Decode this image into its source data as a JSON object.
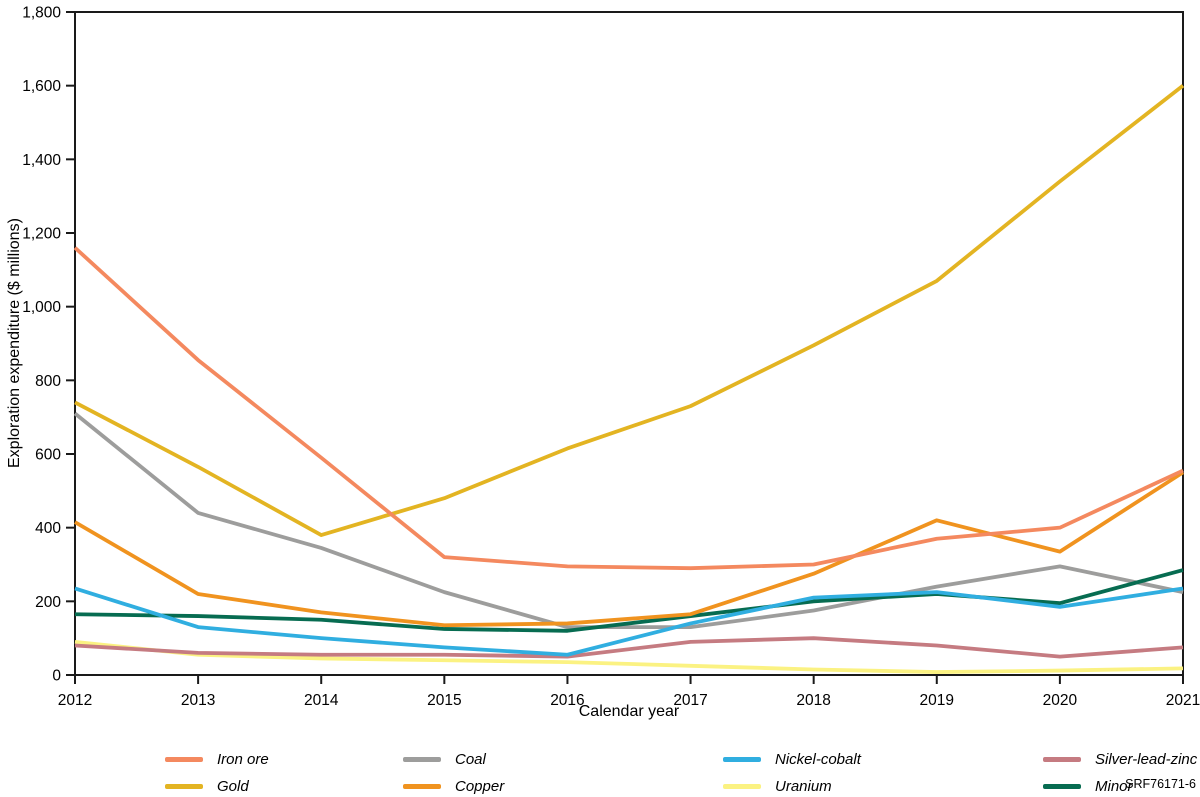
{
  "figure": {
    "reference": "SRF76171-6"
  },
  "chart_data": {
    "type": "line",
    "title": "",
    "xlabel": "Calendar year",
    "ylabel": "Exploration expenditure ($ millions)",
    "x": [
      2012,
      2013,
      2014,
      2015,
      2016,
      2017,
      2018,
      2019,
      2020,
      2021
    ],
    "xtick_labels": [
      "2012",
      "2013",
      "2014",
      "2015",
      "2016",
      "2017",
      "2018",
      "2019",
      "2020",
      "2021"
    ],
    "ylim": [
      0,
      1800
    ],
    "yticks": [
      0,
      200,
      400,
      600,
      800,
      1000,
      1200,
      1400,
      1600,
      1800
    ],
    "ytick_labels": [
      "0",
      "200",
      "400",
      "600",
      "800",
      "1,000",
      "1,200",
      "1,400",
      "1,600",
      "1,800"
    ],
    "grid": false,
    "legend_position": "bottom",
    "axis_color": "#1a1a1a",
    "series": [
      {
        "name": "Uranium",
        "color": "#FBF282",
        "values": [
          90,
          55,
          45,
          40,
          35,
          25,
          15,
          8,
          12,
          18
        ]
      },
      {
        "name": "Silver-lead-zinc",
        "color": "#C57B81",
        "values": [
          80,
          60,
          55,
          55,
          50,
          90,
          100,
          80,
          50,
          75
        ]
      },
      {
        "name": "Coal",
        "color": "#9D9D9C",
        "values": [
          710,
          440,
          345,
          225,
          130,
          130,
          175,
          240,
          295,
          225
        ]
      },
      {
        "name": "Minor",
        "color": "#076C51",
        "values": [
          165,
          160,
          150,
          125,
          120,
          160,
          200,
          220,
          195,
          285
        ]
      },
      {
        "name": "Gold",
        "color": "#E3B422",
        "values": [
          740,
          565,
          380,
          480,
          615,
          730,
          895,
          1070,
          1340,
          1600
        ]
      },
      {
        "name": "Copper",
        "color": "#F0931F",
        "values": [
          415,
          220,
          170,
          135,
          140,
          165,
          275,
          420,
          335,
          550
        ]
      },
      {
        "name": "Nickel-cobalt",
        "color": "#30AEE0",
        "values": [
          235,
          130,
          100,
          75,
          55,
          140,
          210,
          225,
          185,
          235
        ]
      },
      {
        "name": "Iron ore",
        "color": "#F4895F",
        "values": [
          1160,
          855,
          590,
          320,
          295,
          290,
          300,
          370,
          400,
          555
        ]
      }
    ]
  },
  "legend": {
    "items": [
      {
        "label": "Iron ore",
        "series": "Iron ore"
      },
      {
        "label": "Gold",
        "series": "Gold"
      },
      {
        "label": "Coal",
        "series": "Coal"
      },
      {
        "label": "Copper",
        "series": "Copper"
      },
      {
        "label": "Nickel-cobalt",
        "series": "Nickel-cobalt"
      },
      {
        "label": "Uranium",
        "series": "Uranium"
      },
      {
        "label": "Silver-lead-zinc",
        "series": "Silver-lead-zinc"
      },
      {
        "label": "Minor",
        "series": "Minor"
      }
    ]
  }
}
